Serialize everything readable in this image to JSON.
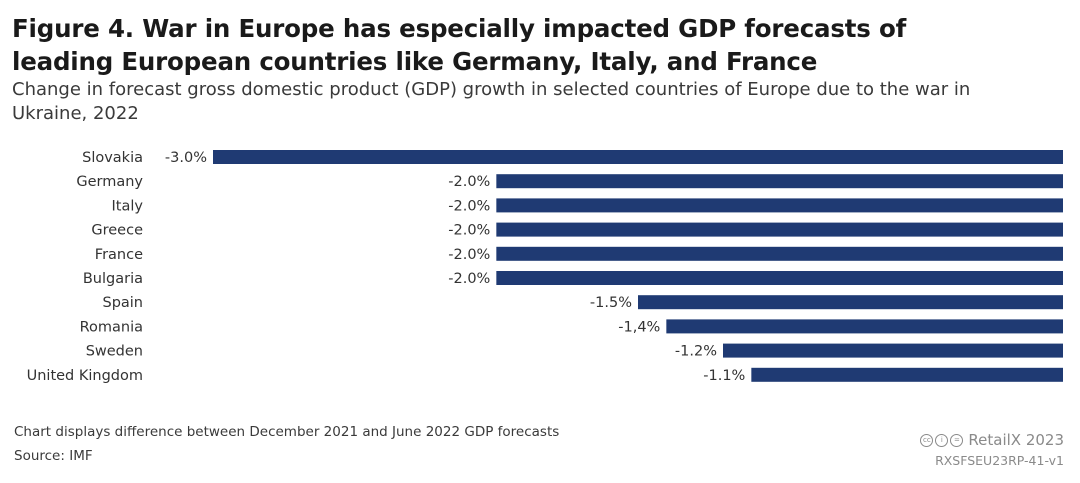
{
  "header": {
    "title": "Figure 4. War in Europe has especially impacted GDP forecasts of leading European countries like Germany, Italy, and France",
    "subtitle": "Change in forecast gross domestic product (GDP) growth in selected countries of Europe due to the war in Ukraine, 2022"
  },
  "footer": {
    "note": "Chart displays difference between December 2021 and June 2022 GDP forecasts",
    "source": "Source: IMF",
    "brand": "RetailX 2023",
    "code": "RXSFSEU23RP-41-v1",
    "license_icons": [
      "cc-icon",
      "by-icon",
      "nd-icon"
    ]
  },
  "chart_data": {
    "type": "bar",
    "orientation": "horizontal",
    "categories": [
      "Slovakia",
      "Germany",
      "Italy",
      "Greece",
      "France",
      "Bulgaria",
      "Spain",
      "Romania",
      "Sweden",
      "United Kingdom"
    ],
    "values": [
      -3.0,
      -2.0,
      -2.0,
      -2.0,
      -2.0,
      -2.0,
      -1.5,
      -1.4,
      -1.2,
      -1.1
    ],
    "value_labels": [
      "-3.0%",
      "-2.0%",
      "-2.0%",
      "-2.0%",
      "-2.0%",
      "-2.0%",
      "-1.5%",
      "-1,4%",
      "-1.2%",
      "-1.1%"
    ],
    "xlim": [
      -3.0,
      0
    ],
    "bar_color": "#1f3a73",
    "grid": false,
    "legend": "none"
  }
}
